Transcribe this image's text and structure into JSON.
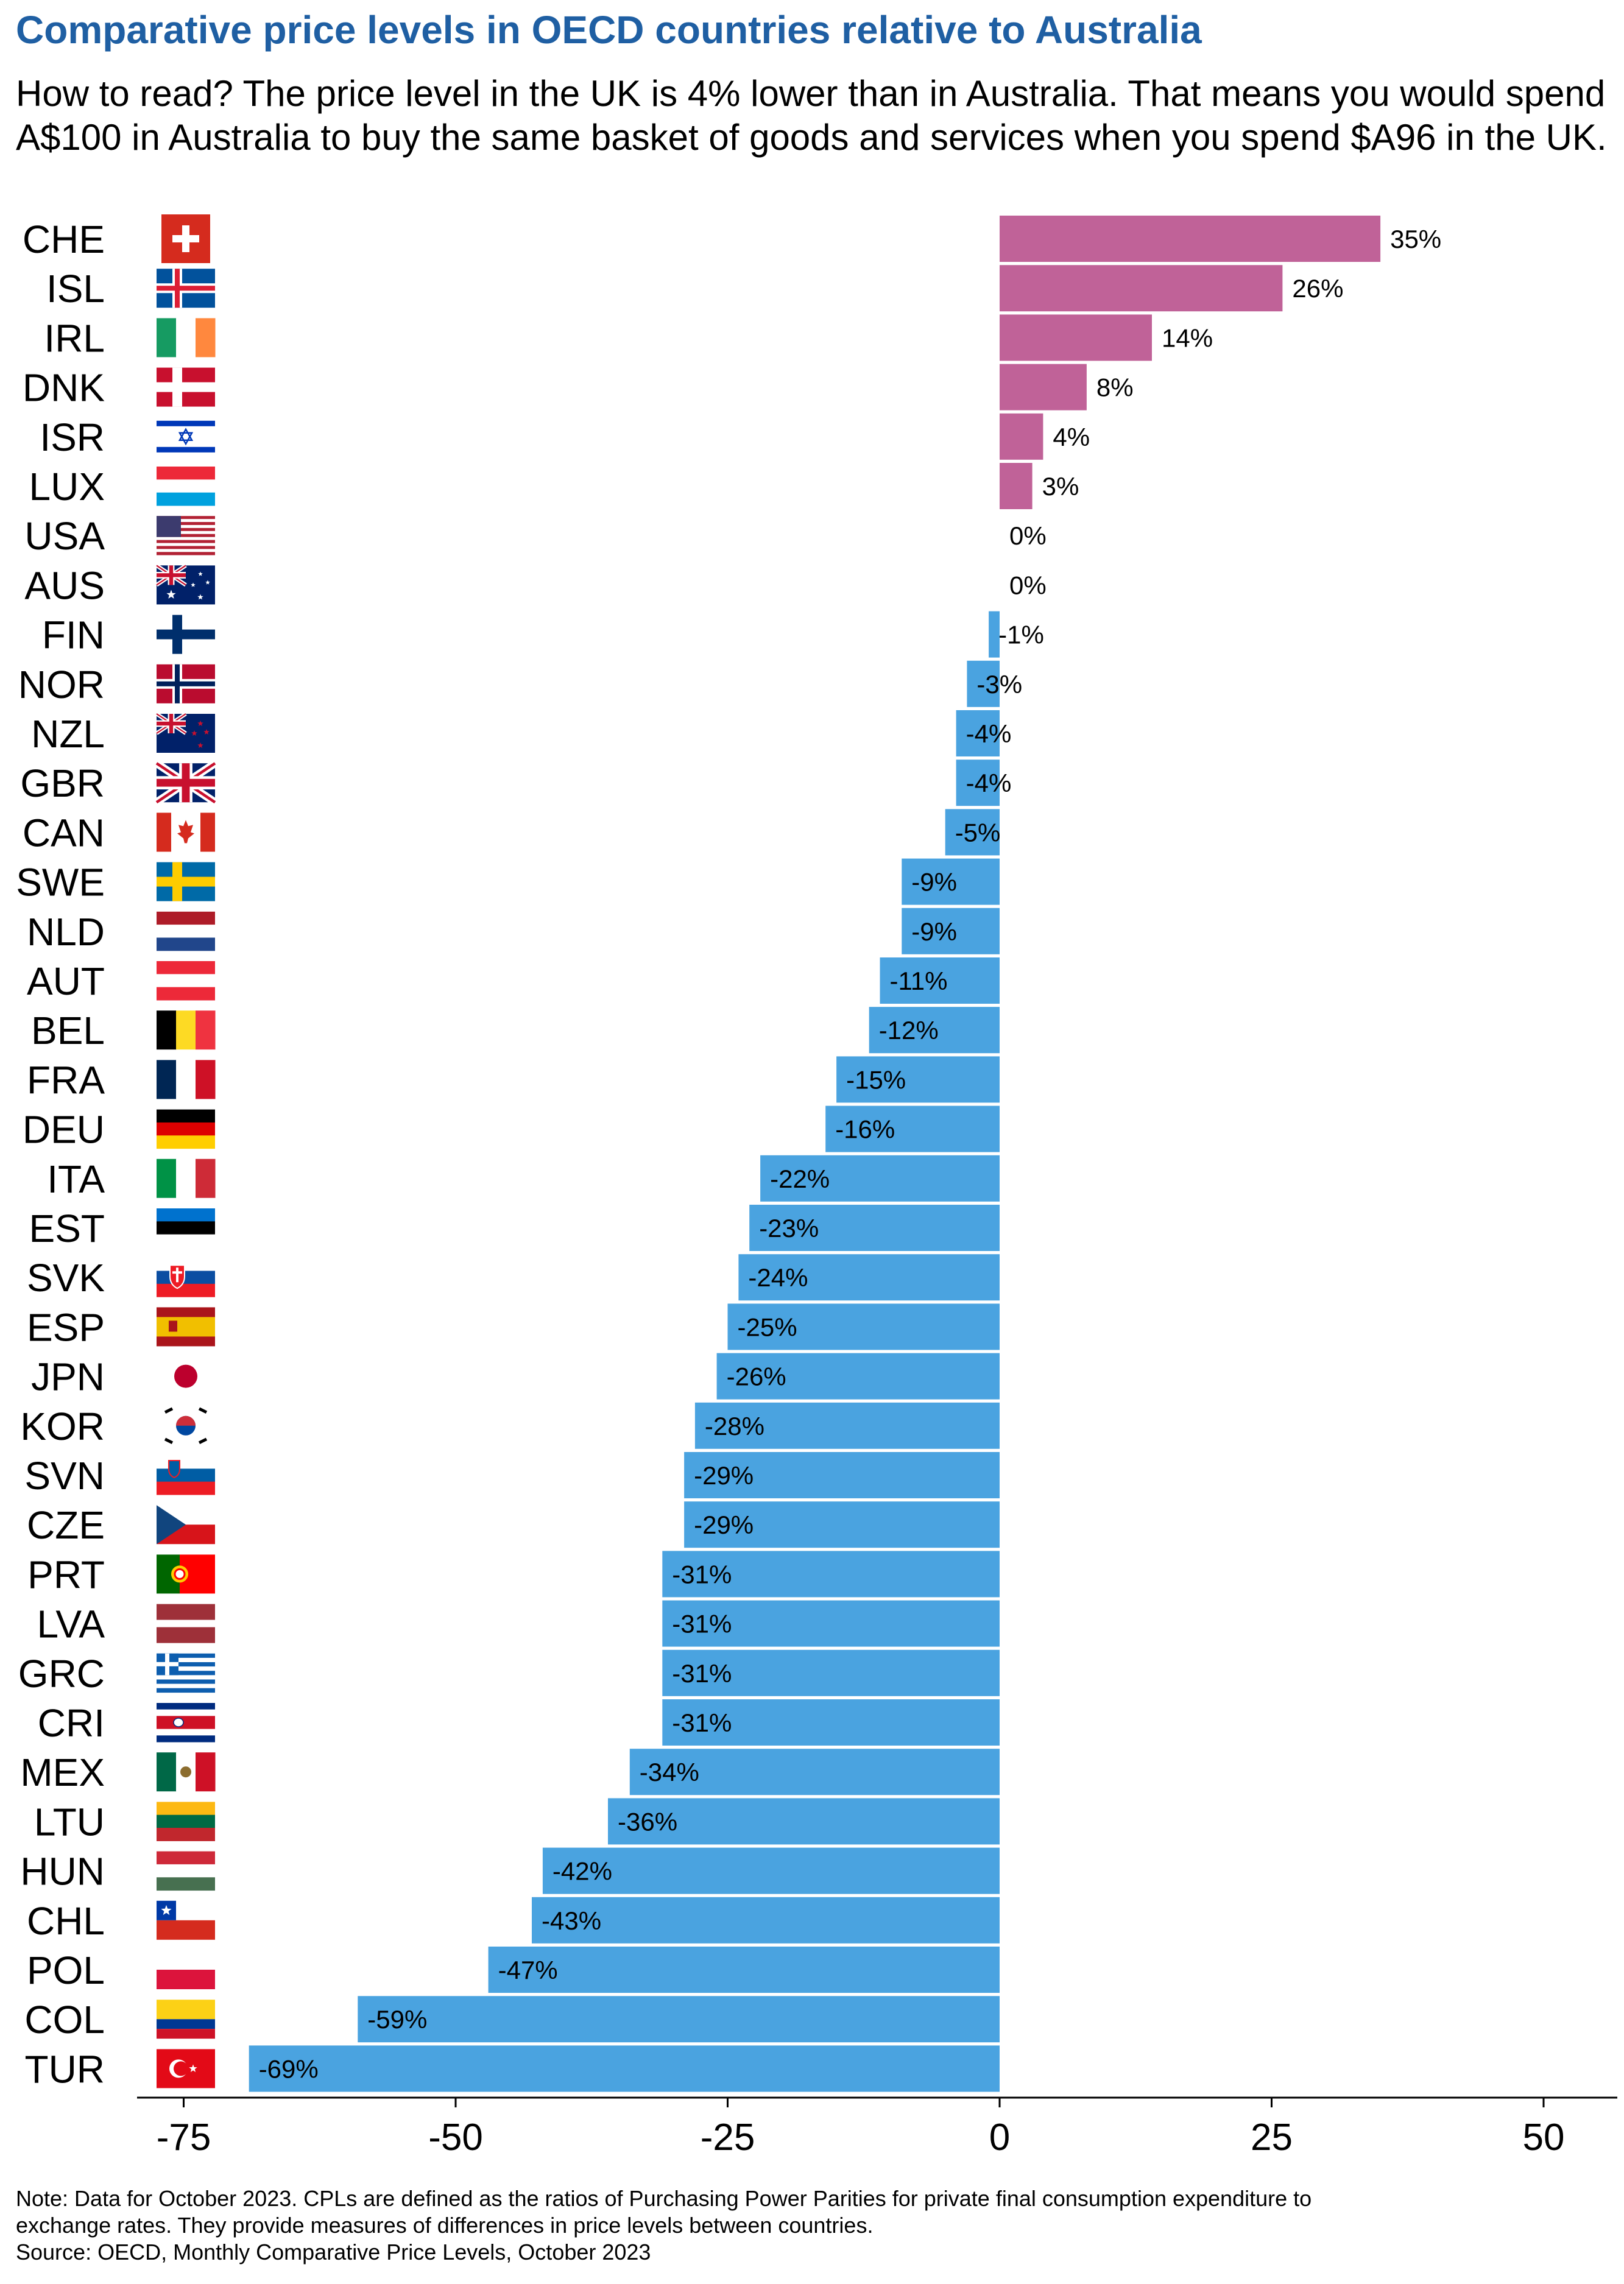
{
  "chart_data": {
    "type": "bar",
    "orientation": "horizontal",
    "title": "Comparative price levels in OECD countries relative to Australia",
    "subtitle": "How to read? The price level in the UK is 4% lower than in Australia. That means you would spend A$100 in Australia to buy the same basket of goods and services when you spend $A96 in the UK.",
    "categories": [
      "CHE",
      "ISL",
      "IRL",
      "DNK",
      "ISR",
      "LUX",
      "USA",
      "AUS",
      "FIN",
      "NOR",
      "NZL",
      "GBR",
      "CAN",
      "SWE",
      "NLD",
      "AUT",
      "BEL",
      "FRA",
      "DEU",
      "ITA",
      "EST",
      "SVK",
      "ESP",
      "JPN",
      "KOR",
      "SVN",
      "CZE",
      "PRT",
      "LVA",
      "GRC",
      "CRI",
      "MEX",
      "LTU",
      "HUN",
      "CHL",
      "POL",
      "COL",
      "TUR"
    ],
    "values": [
      35,
      26,
      14,
      8,
      4,
      3,
      0,
      0,
      -1,
      -3,
      -4,
      -4,
      -5,
      -9,
      -9,
      -11,
      -12,
      -15,
      -16,
      -22,
      -23,
      -24,
      -25,
      -26,
      -28,
      -29,
      -29,
      -31,
      -31,
      -31,
      -31,
      -34,
      -36,
      -42,
      -43,
      -47,
      -59,
      -69
    ],
    "data_labels": [
      "35%",
      "26%",
      "14%",
      "8%",
      "4%",
      "3%",
      "0%",
      "0%",
      "-1%",
      "-3%",
      "-4%",
      "-4%",
      "-5%",
      "-9%",
      "-9%",
      "-11%",
      "-12%",
      "-15%",
      "-16%",
      "-22%",
      "-23%",
      "-24%",
      "-25%",
      "-26%",
      "-28%",
      "-29%",
      "-29%",
      "-31%",
      "-31%",
      "-31%",
      "-31%",
      "-34%",
      "-36%",
      "-42%",
      "-43%",
      "-47%",
      "-59%",
      "-69%"
    ],
    "flags": [
      "flag-che",
      "flag-isl",
      "flag-irl",
      "flag-dnk",
      "flag-isr",
      "flag-lux",
      "flag-usa",
      "flag-aus",
      "flag-fin",
      "flag-nor",
      "flag-nzl",
      "flag-gbr",
      "flag-can",
      "flag-swe",
      "flag-nld",
      "flag-aut",
      "flag-bel",
      "flag-fra",
      "flag-deu",
      "flag-ita",
      "flag-est",
      "flag-svk",
      "flag-esp",
      "flag-jpn",
      "flag-kor",
      "flag-svn",
      "flag-cze",
      "flag-prt",
      "flag-lva",
      "flag-grc",
      "flag-cri",
      "flag-mex",
      "flag-ltu",
      "flag-hun",
      "flag-chl",
      "flag-pol",
      "flag-col",
      "flag-tur"
    ],
    "xlim": [
      -77,
      56
    ],
    "xticks": [
      -75,
      -50,
      -25,
      0,
      25,
      50
    ],
    "xtick_labels": [
      "-75",
      "-50",
      "-25",
      "0",
      "25",
      "50"
    ],
    "xlabel": "",
    "ylabel": "",
    "grid": false,
    "legend": "none",
    "colors": {
      "positive": "#c06298",
      "negative": "#4aa3e0",
      "title": "#1f5fa3"
    }
  },
  "notes": {
    "line1": "Note: Data for October 2023. CPLs are defined as the ratios of Purchasing Power Parities for private final consumption expenditure to",
    "line2": "exchange rates. They provide measures of differences in price levels between countries.",
    "source": "Source: OECD, Monthly Comparative Price Levels, October 2023"
  }
}
